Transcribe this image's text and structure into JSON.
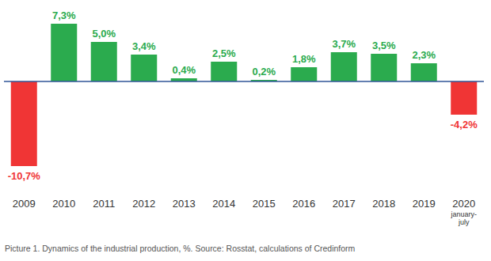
{
  "chart_data": {
    "type": "bar",
    "title": "Picture 1. Dynamics of the industrial production, %. Source: Rosstat, calculations of Credinform",
    "categories": [
      "2009",
      "2010",
      "2011",
      "2012",
      "2013",
      "2014",
      "2015",
      "2016",
      "2017",
      "2018",
      "2019",
      "2020 january-july"
    ],
    "values": [
      -10.7,
      7.3,
      5.0,
      3.4,
      0.4,
      2.5,
      0.2,
      1.8,
      3.7,
      3.5,
      2.3,
      -4.2
    ],
    "value_labels": [
      "-10,7%",
      "7,3%",
      "5,0%",
      "3,4%",
      "0,4%",
      "2,5%",
      "0,2%",
      "1,8%",
      "3,7%",
      "3,5%",
      "2,3%",
      "-4,2%"
    ],
    "colors": [
      "#f03535",
      "#2bab4e",
      "#2bab4e",
      "#2bab4e",
      "#2bab4e",
      "#2bab4e",
      "#2bab4e",
      "#2bab4e",
      "#2bab4e",
      "#2bab4e",
      "#2bab4e",
      "#f03535"
    ],
    "ylim": [
      -11,
      8
    ],
    "data_labels": true,
    "tick_labels": "x",
    "grid": false
  }
}
